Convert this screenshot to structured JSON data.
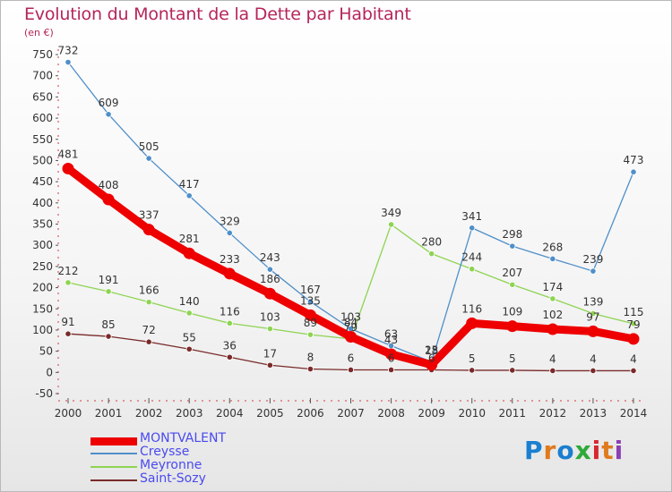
{
  "header": {
    "title": "Evolution du Montant de la Dette par Habitant",
    "unit": "(en €)"
  },
  "logo": {
    "text": "Proxiti",
    "colors": [
      "#1a7fd0",
      "#e07a1f",
      "#1a7fd0",
      "#2faa3a",
      "#d8262f",
      "#e07a1f",
      "#8b3fb5"
    ]
  },
  "chart_data": {
    "type": "line",
    "title": "Evolution du Montant de la Dette par Habitant",
    "ylabel": "(en €)",
    "xlabel": "",
    "x": [
      "2000",
      "2001",
      "2002",
      "2003",
      "2004",
      "2005",
      "2006",
      "2007",
      "2008",
      "2009",
      "2010",
      "2011",
      "2012",
      "2013",
      "2014"
    ],
    "ylim": [
      -50,
      750
    ],
    "yticks": [
      -50,
      0,
      50,
      100,
      150,
      200,
      250,
      300,
      350,
      400,
      450,
      500,
      550,
      600,
      650,
      700,
      750
    ],
    "grid": false,
    "legend": "bottom-left",
    "series": [
      {
        "name": "MONTVALENT",
        "color": "#ee0000",
        "values": [
          481,
          408,
          337,
          281,
          233,
          186,
          135,
          84,
          43,
          18,
          116,
          109,
          102,
          97,
          79
        ]
      },
      {
        "name": "Creysse",
        "color": "#4f8fc9",
        "values": [
          732,
          609,
          505,
          417,
          329,
          243,
          167,
          103,
          63,
          25,
          341,
          298,
          268,
          239,
          473
        ]
      },
      {
        "name": "Meyronne",
        "color": "#8ed452",
        "values": [
          212,
          191,
          166,
          140,
          116,
          103,
          89,
          79,
          349,
          280,
          244,
          207,
          174,
          139,
          115
        ]
      },
      {
        "name": "Saint-Sozy",
        "color": "#7a2a2a",
        "values": [
          91,
          85,
          72,
          55,
          36,
          17,
          8,
          6,
          6,
          6,
          5,
          5,
          4,
          4,
          4
        ]
      }
    ]
  }
}
